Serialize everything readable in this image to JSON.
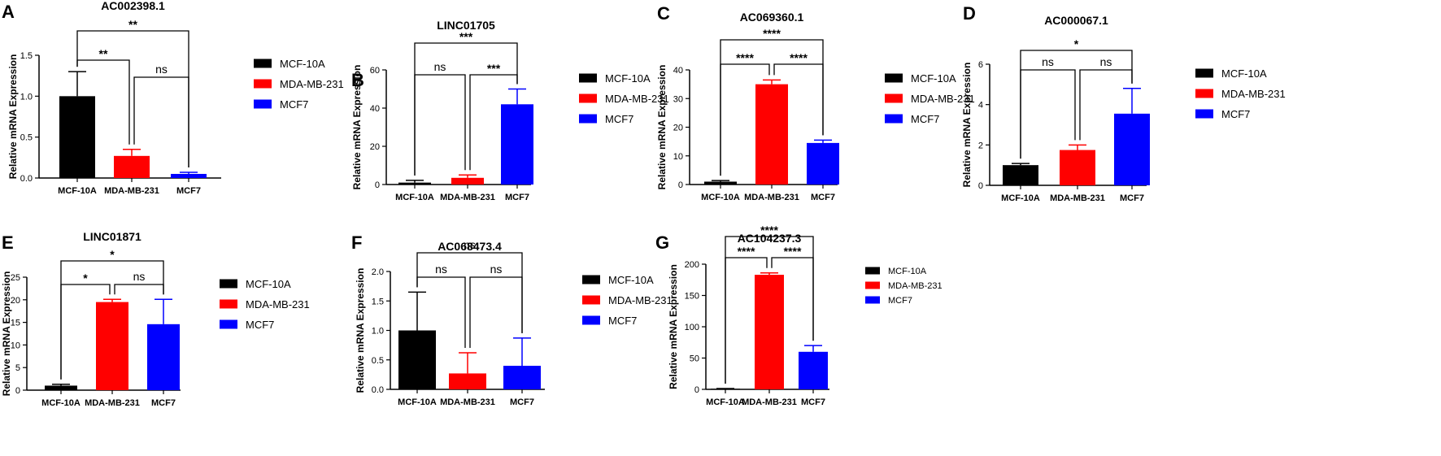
{
  "colors": {
    "MCF-10A": "#000000",
    "MDA-MB-231": "#ff0000",
    "MCF7": "#0000ff"
  },
  "chart_data": [
    {
      "panel": "A",
      "type": "bar",
      "title": "AC002398.1",
      "categories": [
        "MCF-10A",
        "MDA-MB-231",
        "MCF7"
      ],
      "values": [
        1.0,
        0.27,
        0.05
      ],
      "errors": [
        0.3,
        0.08,
        0.02
      ],
      "ylabel": "Relative mRNA Expression",
      "ylim": [
        0,
        1.5
      ],
      "yticks": [
        0,
        0.5,
        1.0,
        1.5
      ],
      "ytick_labels": [
        "0.0",
        "0.5",
        "1.0",
        "1.5"
      ],
      "legend": [
        "MCF-10A",
        "MDA-MB-231",
        "MCF7"
      ],
      "comparisons": [
        {
          "from": 0,
          "to": 1,
          "label": "**"
        },
        {
          "from": 1,
          "to": 2,
          "label": "ns"
        },
        {
          "from": 0,
          "to": 2,
          "label": "**"
        }
      ]
    },
    {
      "panel": "B",
      "type": "bar",
      "title": "LINC01705",
      "categories": [
        "MCF-10A",
        "MDA-MB-231",
        "MCF7"
      ],
      "values": [
        1.0,
        3.5,
        42
      ],
      "errors": [
        1.2,
        1.5,
        8
      ],
      "ylabel": "Relative mRNA Expression",
      "ylim": [
        0,
        60
      ],
      "yticks": [
        0,
        20,
        40,
        60
      ],
      "ytick_labels": [
        "0",
        "20",
        "40",
        "60"
      ],
      "legend": [
        "MCF-10A",
        "MDA-MB-231",
        "MCF7"
      ],
      "comparisons": [
        {
          "from": 0,
          "to": 1,
          "label": "ns"
        },
        {
          "from": 1,
          "to": 2,
          "label": "***"
        },
        {
          "from": 0,
          "to": 2,
          "label": "***"
        }
      ]
    },
    {
      "panel": "C",
      "type": "bar",
      "title": "AC069360.1",
      "categories": [
        "MCF-10A",
        "MDA-MB-231",
        "MCF7"
      ],
      "values": [
        1.0,
        35,
        14.5
      ],
      "errors": [
        0.4,
        1.5,
        1.0
      ],
      "ylabel": "Relative mRNA Expression",
      "ylim": [
        0,
        40
      ],
      "yticks": [
        0,
        10,
        20,
        30,
        40
      ],
      "ytick_labels": [
        "0",
        "10",
        "20",
        "30",
        "40"
      ],
      "legend": [
        "MCF-10A",
        "MDA-MB-231",
        "MCF7"
      ],
      "comparisons": [
        {
          "from": 0,
          "to": 1,
          "label": "****"
        },
        {
          "from": 1,
          "to": 2,
          "label": "****"
        },
        {
          "from": 0,
          "to": 2,
          "label": "****"
        }
      ]
    },
    {
      "panel": "D",
      "type": "bar",
      "title": "AC000067.1",
      "categories": [
        "MCF-10A",
        "MDA-MB-231",
        "MCF7"
      ],
      "values": [
        1.0,
        1.75,
        3.55
      ],
      "errors": [
        0.08,
        0.25,
        1.25
      ],
      "ylabel": "Relative mRNA Expression",
      "ylim": [
        0,
        6
      ],
      "yticks": [
        0,
        2,
        4,
        6
      ],
      "ytick_labels": [
        "0",
        "2",
        "4",
        "6"
      ],
      "legend": [
        "MCF-10A",
        "MDA-MB-231",
        "MCF7"
      ],
      "comparisons": [
        {
          "from": 0,
          "to": 1,
          "label": "ns"
        },
        {
          "from": 1,
          "to": 2,
          "label": "ns"
        },
        {
          "from": 0,
          "to": 2,
          "label": "*"
        }
      ]
    },
    {
      "panel": "E",
      "type": "bar",
      "title": "LINC01871",
      "categories": [
        "MCF-10A",
        "MDA-MB-231",
        "MCF7"
      ],
      "values": [
        1.0,
        19.5,
        14.6
      ],
      "errors": [
        0.3,
        0.6,
        5.5
      ],
      "ylabel": "Relative mRNA Expression",
      "ylim": [
        0,
        25
      ],
      "yticks": [
        0,
        5,
        10,
        15,
        20,
        25
      ],
      "ytick_labels": [
        "0",
        "5",
        "10",
        "15",
        "20",
        "25"
      ],
      "legend": [
        "MCF-10A",
        "MDA-MB-231",
        "MCF7"
      ],
      "comparisons": [
        {
          "from": 0,
          "to": 1,
          "label": "*"
        },
        {
          "from": 1,
          "to": 2,
          "label": "ns"
        },
        {
          "from": 0,
          "to": 2,
          "label": "*"
        }
      ]
    },
    {
      "panel": "F",
      "type": "bar",
      "title": "AC068473.4",
      "categories": [
        "MCF-10A",
        "MDA-MB-231",
        "MCF7"
      ],
      "values": [
        1.0,
        0.27,
        0.4
      ],
      "errors": [
        0.65,
        0.35,
        0.47
      ],
      "ylabel": "Relative mRNA Expression",
      "ylim": [
        0,
        2.0
      ],
      "yticks": [
        0,
        0.5,
        1.0,
        1.5,
        2.0
      ],
      "ytick_labels": [
        "0.0",
        "0.5",
        "1.0",
        "1.5",
        "2.0"
      ],
      "legend": [
        "MCF-10A",
        "MDA-MB-231",
        "MCF7"
      ],
      "comparisons": [
        {
          "from": 0,
          "to": 1,
          "label": "ns"
        },
        {
          "from": 1,
          "to": 2,
          "label": "ns"
        },
        {
          "from": 0,
          "to": 2,
          "label": "ns"
        }
      ]
    },
    {
      "panel": "G",
      "type": "bar",
      "title": "AC104237.3",
      "categories": [
        "MCF-10A",
        "MDA-MB-231",
        "MCF7"
      ],
      "values": [
        1.0,
        183,
        60
      ],
      "errors": [
        0.3,
        3,
        10
      ],
      "ylabel": "Relative mRNA Expression",
      "ylim": [
        0,
        200
      ],
      "yticks": [
        0,
        50,
        100,
        150,
        200
      ],
      "ytick_labels": [
        "0",
        "50",
        "100",
        "150",
        "200"
      ],
      "legend": [
        "MCF-10A",
        "MDA-MB-231",
        "MCF7"
      ],
      "comparisons": [
        {
          "from": 0,
          "to": 1,
          "label": "****"
        },
        {
          "from": 1,
          "to": 2,
          "label": "****"
        },
        {
          "from": 0,
          "to": 2,
          "label": "****"
        }
      ]
    }
  ]
}
